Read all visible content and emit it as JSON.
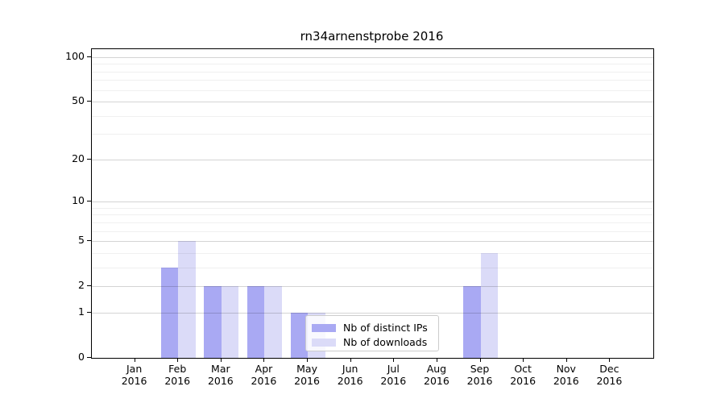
{
  "title": "rn34arnenstprobe 2016",
  "colors": {
    "distinct_ips": "#a9a9f3",
    "downloads": "#dbdbf8",
    "axis": "#000000",
    "legend_border": "#cccccc"
  },
  "legend": {
    "items": [
      {
        "label": "Nb of distinct IPs",
        "color": "#a9a9f3"
      },
      {
        "label": "Nb of downloads",
        "color": "#dbdbf8"
      }
    ]
  },
  "chart_data": {
    "type": "bar",
    "title": "rn34arnenstprobe 2016",
    "categories": [
      "Jan 2016",
      "Feb 2016",
      "Mar 2016",
      "Apr 2016",
      "May 2016",
      "Jun 2016",
      "Jul 2016",
      "Aug 2016",
      "Sep 2016",
      "Oct 2016",
      "Nov 2016",
      "Dec 2016"
    ],
    "x_tick_line1": [
      "Jan",
      "Feb",
      "Mar",
      "Apr",
      "May",
      "Jun",
      "Jul",
      "Aug",
      "Sep",
      "Oct",
      "Nov",
      "Dec"
    ],
    "x_tick_line2": [
      "2016",
      "2016",
      "2016",
      "2016",
      "2016",
      "2016",
      "2016",
      "2016",
      "2016",
      "2016",
      "2016",
      "2016"
    ],
    "series": [
      {
        "name": "Nb of distinct IPs",
        "color": "#a9a9f3",
        "values": [
          0,
          3,
          2,
          2,
          1,
          0,
          0,
          0,
          2,
          0,
          0,
          0
        ]
      },
      {
        "name": "Nb of downloads",
        "color": "#dbdbf8",
        "values": [
          0,
          5,
          2,
          2,
          1,
          0,
          0,
          0,
          4,
          0,
          0,
          0
        ]
      }
    ],
    "yscale": "log1p",
    "ylim": [
      0,
      113
    ],
    "y_major_ticks": [
      0,
      1,
      2,
      5,
      10,
      20,
      50,
      100
    ],
    "y_minor_ticks": [
      3,
      4,
      6,
      7,
      8,
      9,
      30,
      40,
      60,
      70,
      80,
      90
    ],
    "xlabel": "",
    "ylabel": "",
    "grid": true,
    "grid_above_bars": true,
    "legend_position": "lower center"
  }
}
